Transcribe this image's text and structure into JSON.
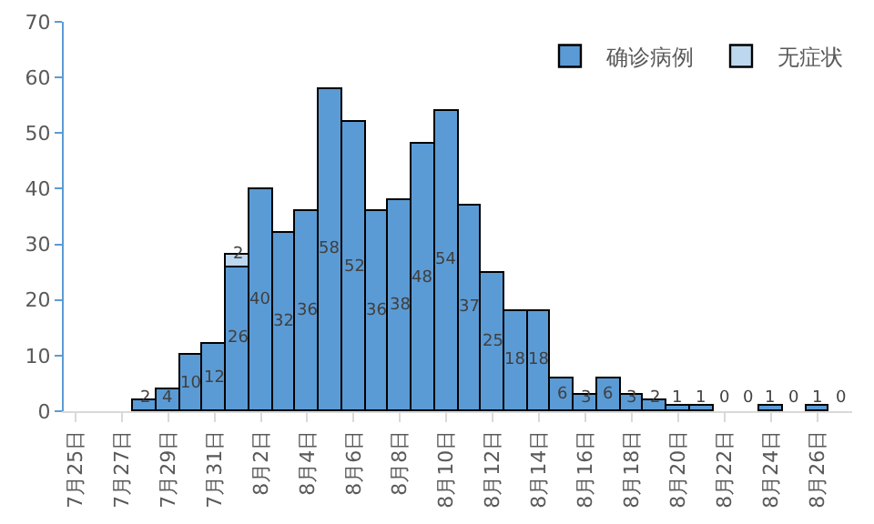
{
  "chart_data": {
    "type": "bar",
    "stacked": true,
    "data_labels": true,
    "legend": "top right",
    "grid": false,
    "categories": [
      "7月25日",
      null,
      "7月27日",
      null,
      "7月29日",
      null,
      "7月31日",
      null,
      "8月2日",
      null,
      "8月4日",
      null,
      "8月6日",
      null,
      "8月8日",
      null,
      "8月10日",
      null,
      "8月12日",
      null,
      "8月14日",
      null,
      "8月16日",
      null,
      "8月18日",
      null,
      "8月20日",
      null,
      "8月22日",
      null,
      "8月24日",
      null,
      "8月26日",
      null
    ],
    "series": [
      {
        "name": "确诊病例",
        "color": "#5b9bd5",
        "values": [
          null,
          null,
          null,
          2,
          4,
          10,
          12,
          26,
          40,
          32,
          36,
          58,
          52,
          36,
          38,
          48,
          54,
          37,
          25,
          18,
          18,
          6,
          3,
          6,
          3,
          2,
          1,
          1,
          0,
          0,
          1,
          0,
          1,
          0
        ]
      },
      {
        "name": "无症状",
        "color": "#bdd7ee",
        "values": [
          null,
          null,
          null,
          null,
          null,
          null,
          null,
          2,
          null,
          null,
          null,
          null,
          null,
          null,
          null,
          null,
          null,
          null,
          null,
          null,
          null,
          null,
          null,
          null,
          null,
          null,
          null,
          null,
          null,
          null,
          null,
          null,
          null,
          null
        ]
      }
    ],
    "ylim": [
      0,
      70
    ],
    "yticks": [
      0,
      10,
      20,
      30,
      40,
      50,
      60,
      70
    ]
  }
}
